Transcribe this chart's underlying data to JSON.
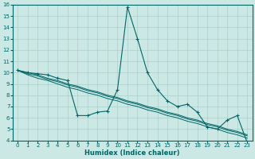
{
  "xlabel": "Humidex (Indice chaleur)",
  "bg_color": "#cce8e4",
  "grid_color": "#aad0cc",
  "line_color": "#006666",
  "xlim": [
    -0.5,
    23.5
  ],
  "ylim": [
    4,
    16
  ],
  "xticks": [
    0,
    1,
    2,
    3,
    4,
    5,
    6,
    7,
    8,
    9,
    10,
    11,
    12,
    13,
    14,
    15,
    16,
    17,
    18,
    19,
    20,
    21,
    22,
    23
  ],
  "yticks": [
    4,
    5,
    6,
    7,
    8,
    9,
    10,
    11,
    12,
    13,
    14,
    15,
    16
  ],
  "series": [
    [
      10.2,
      10.0,
      9.9,
      9.8,
      9.5,
      9.3,
      6.2,
      6.2,
      6.5,
      6.6,
      8.5,
      15.8,
      13.0,
      10.0,
      8.5,
      7.5,
      7.0,
      7.2,
      6.5,
      5.2,
      5.0,
      5.8,
      6.2,
      3.8
    ],
    [
      10.2,
      10.0,
      9.8,
      9.5,
      9.3,
      9.0,
      8.8,
      8.5,
      8.3,
      8.0,
      7.8,
      7.5,
      7.3,
      7.0,
      6.8,
      6.5,
      6.3,
      6.0,
      5.8,
      5.5,
      5.3,
      5.0,
      4.8,
      4.5
    ],
    [
      10.2,
      9.9,
      9.7,
      9.4,
      9.2,
      8.9,
      8.7,
      8.4,
      8.2,
      7.9,
      7.7,
      7.4,
      7.2,
      6.9,
      6.7,
      6.4,
      6.2,
      5.9,
      5.7,
      5.4,
      5.2,
      4.9,
      4.7,
      4.4
    ],
    [
      10.2,
      9.8,
      9.5,
      9.3,
      9.0,
      8.7,
      8.5,
      8.2,
      8.0,
      7.7,
      7.5,
      7.2,
      7.0,
      6.7,
      6.5,
      6.2,
      6.0,
      5.7,
      5.5,
      5.2,
      5.0,
      4.7,
      4.5,
      4.2
    ]
  ],
  "tick_fontsize": 5.0,
  "xlabel_fontsize": 6.0,
  "marker_size": 2.5,
  "lw_main": 0.8,
  "lw_ref": 0.7
}
